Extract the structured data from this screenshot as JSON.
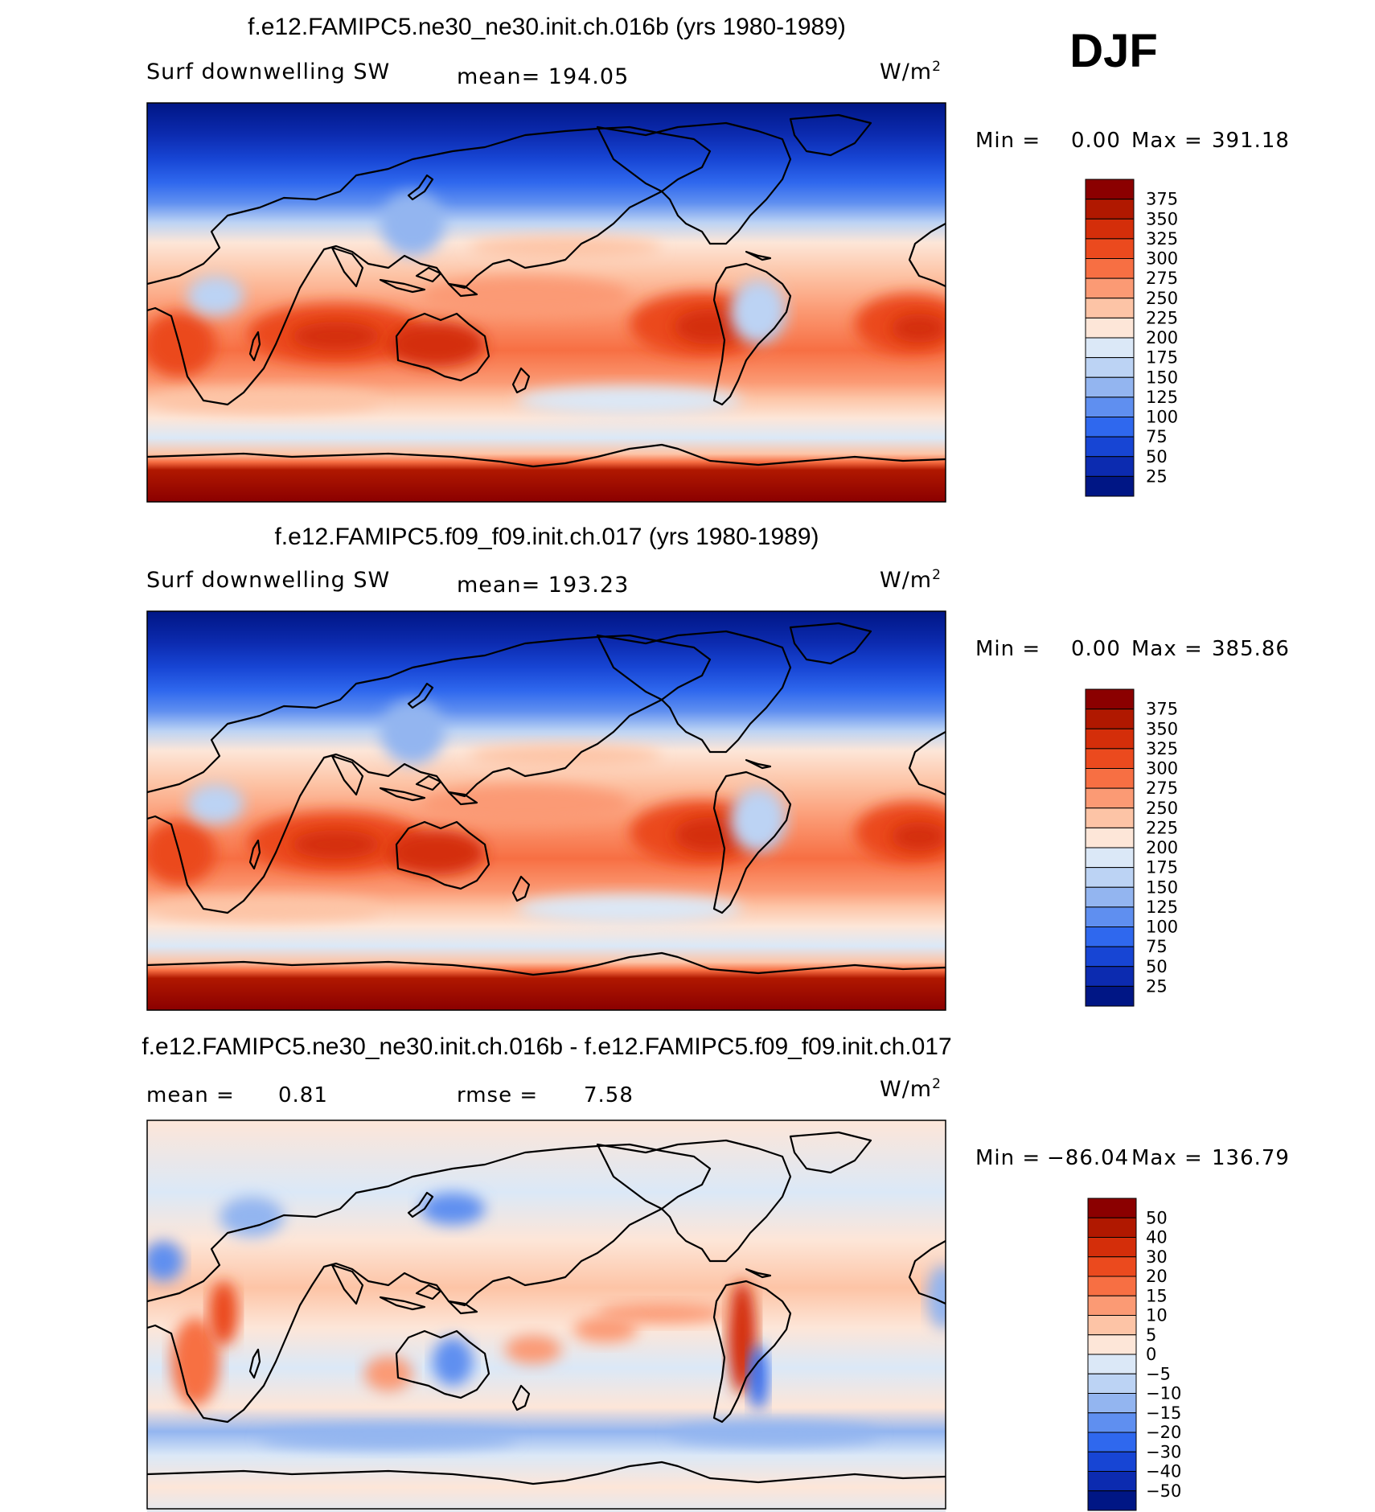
{
  "season": "DJF",
  "chart_data": [
    {
      "type": "heatmap",
      "title": "f.e12.FAMIPC5.ne30_ne30.init.ch.016b (yrs 1980-1989)",
      "variable": "Surf  downwelling  SW",
      "mean_label": "mean=  194.05",
      "units_base": "W/m",
      "units_exp": "2",
      "min_label": "Min  =",
      "min_value": "0.00",
      "max_label": "Max  =",
      "max_value": "391.18",
      "levels": [
        "375",
        "350",
        "325",
        "300",
        "275",
        "250",
        "225",
        "200",
        "175",
        "150",
        "125",
        "100",
        "75",
        "50",
        "25"
      ],
      "colors": [
        "#8b0000",
        "#b01800",
        "#d42e0a",
        "#eb4a1e",
        "#f76f43",
        "#fb9a74",
        "#fdc4a6",
        "#fde6d8",
        "#dbe8f7",
        "#bcd3f4",
        "#93b5f0",
        "#5f8ff0",
        "#2f68ee",
        "#1745d4",
        "#0c2bb0",
        "#001685"
      ]
    },
    {
      "type": "heatmap",
      "title": "f.e12.FAMIPC5.f09_f09.init.ch.017 (yrs 1980-1989)",
      "variable": "Surf  downwelling  SW",
      "mean_label": "mean=  193.23",
      "units_base": "W/m",
      "units_exp": "2",
      "min_label": "Min  =",
      "min_value": "0.00",
      "max_label": "Max  =",
      "max_value": "385.86",
      "levels": [
        "375",
        "350",
        "325",
        "300",
        "275",
        "250",
        "225",
        "200",
        "175",
        "150",
        "125",
        "100",
        "75",
        "50",
        "25"
      ],
      "colors": [
        "#8b0000",
        "#b01800",
        "#d42e0a",
        "#eb4a1e",
        "#f76f43",
        "#fb9a74",
        "#fdc4a6",
        "#fde6d8",
        "#dbe8f7",
        "#bcd3f4",
        "#93b5f0",
        "#5f8ff0",
        "#2f68ee",
        "#1745d4",
        "#0c2bb0",
        "#001685"
      ]
    },
    {
      "type": "heatmap",
      "title": "f.e12.FAMIPC5.ne30_ne30.init.ch.016b - f.e12.FAMIPC5.f09_f09.init.ch.017",
      "mean_label": "mean  =",
      "mean_value": "0.81",
      "rmse_label": "rmse  =",
      "rmse_value": "7.58",
      "units_base": "W/m",
      "units_exp": "2",
      "min_label": "Min  =",
      "min_value": "−86.04",
      "max_label": "Max  =",
      "max_value": "136.79",
      "levels": [
        "50",
        "40",
        "30",
        "20",
        "15",
        "10",
        "5",
        "0",
        "−5",
        "−10",
        "−15",
        "−20",
        "−30",
        "−40",
        "−50"
      ],
      "colors": [
        "#8b0000",
        "#b01800",
        "#d42e0a",
        "#eb4a1e",
        "#f76f43",
        "#fb9a74",
        "#fdc4a6",
        "#fde6d8",
        "#dbe8f7",
        "#bcd3f4",
        "#93b5f0",
        "#5f8ff0",
        "#2f68ee",
        "#1745d4",
        "#0c2bb0",
        "#001685"
      ]
    }
  ]
}
